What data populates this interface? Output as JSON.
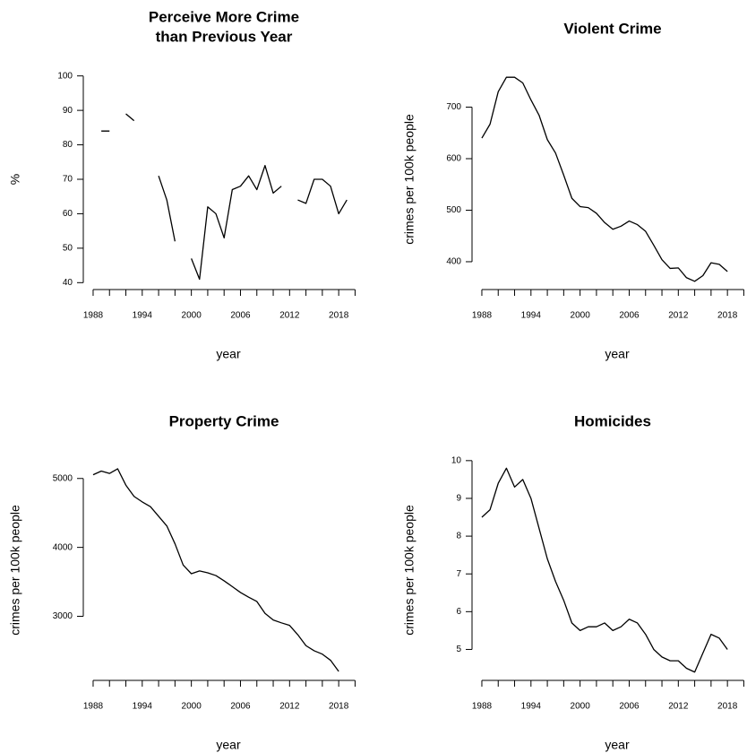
{
  "chart_data": [
    {
      "type": "line",
      "title": [
        "Perceive More Crime",
        "than Previous Year"
      ],
      "xlabel": "year",
      "ylabel": "%",
      "x": [
        1988,
        1989,
        1990,
        1991,
        1992,
        1993,
        1994,
        1995,
        1996,
        1997,
        1998,
        1999,
        2000,
        2001,
        2002,
        2003,
        2004,
        2005,
        2006,
        2007,
        2008,
        2009,
        2010,
        2011,
        2012,
        2013,
        2014,
        2015,
        2016,
        2017,
        2018,
        2019
      ],
      "values": [
        null,
        84,
        84,
        null,
        89,
        87,
        null,
        null,
        71,
        64,
        52,
        null,
        47,
        41,
        62,
        60,
        53,
        67,
        68,
        71,
        67,
        74,
        66,
        68,
        null,
        64,
        63,
        70,
        70,
        68,
        60,
        64
      ],
      "color": "#000000",
      "xlim": [
        1986.8,
        2020.5
      ],
      "ylim": [
        38,
        102
      ],
      "xticks": [
        1988,
        1990,
        1992,
        1994,
        1996,
        1998,
        2000,
        2002,
        2004,
        2006,
        2008,
        2010,
        2012,
        2014,
        2016,
        2018,
        2020
      ],
      "yticks": [
        40,
        50,
        60,
        70,
        80,
        90,
        100
      ]
    },
    {
      "type": "line",
      "title": "Violent Crime",
      "xlabel": "year",
      "ylabel": "crimes per 100k people",
      "x": [
        1988,
        1989,
        1990,
        1991,
        1992,
        1993,
        1994,
        1995,
        1996,
        1997,
        1998,
        1999,
        2000,
        2001,
        2002,
        2003,
        2004,
        2005,
        2006,
        2007,
        2008,
        2009,
        2010,
        2011,
        2012,
        2013,
        2014,
        2015,
        2016,
        2017,
        2018
      ],
      "values": [
        640,
        667,
        730,
        758,
        758,
        747,
        714,
        684,
        637,
        611,
        568,
        523,
        507,
        505,
        494,
        476,
        463,
        469,
        479,
        472,
        459,
        432,
        404,
        387,
        388,
        369,
        362,
        373,
        398,
        395,
        381
      ],
      "color": "#000000",
      "xlim": [
        1986.8,
        2020.5
      ],
      "ylim": [
        346,
        774
      ],
      "xticks": [
        1988,
        1990,
        1992,
        1994,
        1996,
        1998,
        2000,
        2002,
        2004,
        2006,
        2008,
        2010,
        2012,
        2014,
        2016,
        2018,
        2020
      ],
      "yticks": [
        400,
        500,
        600,
        700
      ]
    },
    {
      "type": "line",
      "title": "Property Crime",
      "xlabel": "year",
      "ylabel": "crimes per 100k people",
      "x": [
        1988,
        1989,
        1990,
        1991,
        1992,
        1993,
        1994,
        1995,
        1996,
        1997,
        1998,
        1999,
        2000,
        2001,
        2002,
        2003,
        2004,
        2005,
        2006,
        2007,
        2008,
        2009,
        2010,
        2011,
        2012,
        2013,
        2014,
        2015,
        2016,
        2017,
        2018
      ],
      "values": [
        5054,
        5107,
        5073,
        5140,
        4903,
        4740,
        4660,
        4591,
        4451,
        4312,
        4053,
        3744,
        3618,
        3658,
        3631,
        3591,
        3515,
        3431,
        3346,
        3277,
        3215,
        3042,
        2946,
        2905,
        2868,
        2733,
        2574,
        2500,
        2451,
        2362,
        2200
      ],
      "color": "#000000",
      "xlim": [
        1986.8,
        2020.5
      ],
      "ylim": [
        2070,
        5270
      ],
      "xticks": [
        1988,
        1990,
        1992,
        1994,
        1996,
        1998,
        2000,
        2002,
        2004,
        2006,
        2008,
        2010,
        2012,
        2014,
        2016,
        2018,
        2020
      ],
      "yticks": [
        3000,
        4000,
        5000
      ]
    },
    {
      "type": "line",
      "title": "Homicides",
      "xlabel": "year",
      "ylabel": "crimes per 100k people",
      "x": [
        1988,
        1989,
        1990,
        1991,
        1992,
        1993,
        1994,
        1995,
        1996,
        1997,
        1998,
        1999,
        2000,
        2001,
        2002,
        2003,
        2004,
        2005,
        2006,
        2007,
        2008,
        2009,
        2010,
        2011,
        2012,
        2013,
        2014,
        2015,
        2016,
        2017,
        2018
      ],
      "values": [
        8.5,
        8.7,
        9.4,
        9.8,
        9.3,
        9.5,
        9.0,
        8.2,
        7.4,
        6.8,
        6.3,
        5.7,
        5.5,
        5.6,
        5.6,
        5.7,
        5.5,
        5.6,
        5.8,
        5.7,
        5.4,
        5.0,
        4.8,
        4.7,
        4.7,
        4.5,
        4.4,
        4.9,
        5.4,
        5.3,
        5.0
      ],
      "color": "#000000",
      "xlim": [
        1986.8,
        2020.5
      ],
      "ylim": [
        4.18,
        10.02
      ],
      "xticks": [
        1988,
        1990,
        1992,
        1994,
        1996,
        1998,
        2000,
        2002,
        2004,
        2006,
        2008,
        2010,
        2012,
        2014,
        2016,
        2018,
        2020
      ],
      "yticks": [
        5,
        6,
        7,
        8,
        9,
        10
      ]
    }
  ]
}
